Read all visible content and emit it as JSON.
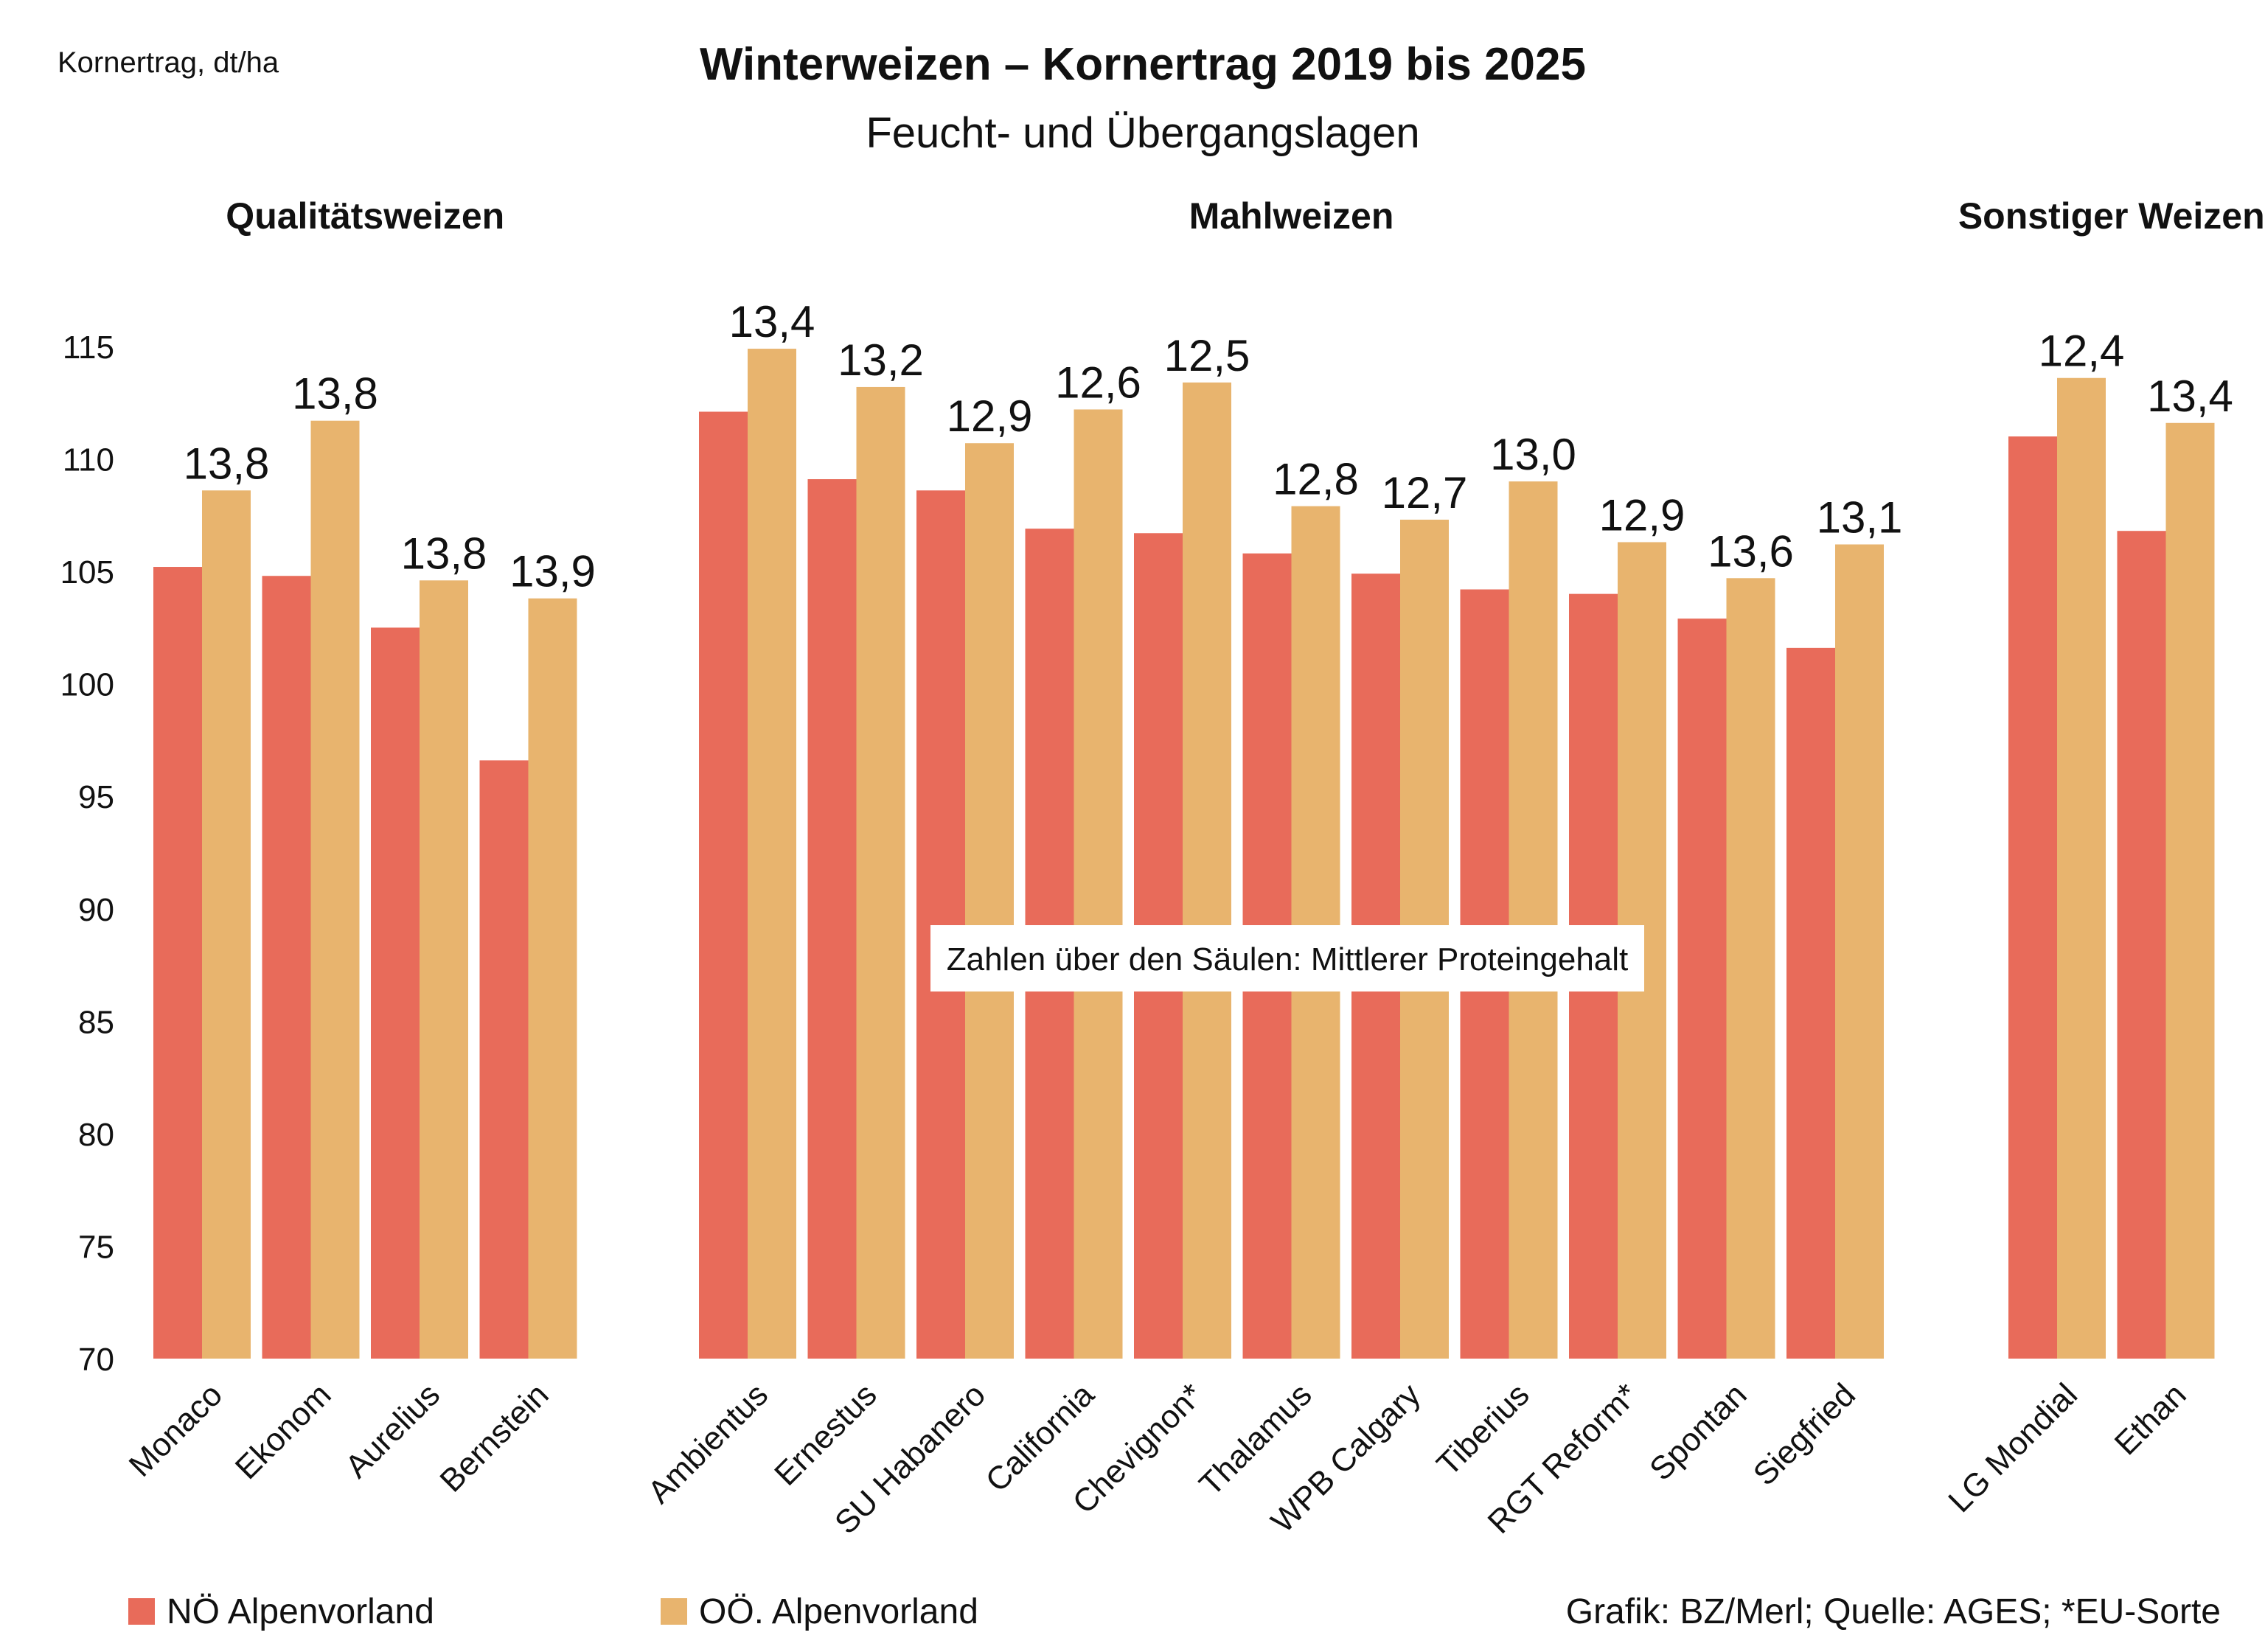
{
  "chart_data": {
    "type": "bar",
    "title": "Winterweizen – Kornertrag 2019 bis 2025",
    "subtitle": "Feucht- und Übergangslagen",
    "ylabel": "Kornertrag, dt/ha",
    "ylim": [
      70,
      117
    ],
    "yticks": [
      70,
      75,
      80,
      85,
      90,
      95,
      100,
      105,
      110,
      115
    ],
    "grid": false,
    "legend_position": "bottom-left",
    "note": "Zahlen über den Säulen: Mittlerer Proteingehalt",
    "source": "Grafik: BZ/Merl; Quelle: AGES; *EU-Sorte",
    "colors": {
      "NÖ Alpenvorland": "#e86b5a",
      "OÖ. Alpenvorland": "#e8b46e"
    },
    "groups": [
      {
        "name": "Qualitätsweizen",
        "categories": [
          "Monaco",
          "Ekonom",
          "Aurelius",
          "Bernstein"
        ]
      },
      {
        "name": "Mahlweizen",
        "categories": [
          "Ambientus",
          "Ernestus",
          "SU Habanero",
          "California",
          "Chevignon*",
          "Thalamus",
          "WPB Calgary",
          "Tiberius",
          "RGT Reform*",
          "Spontan",
          "Siegfried"
        ]
      },
      {
        "name": "Sonstiger Weizen",
        "categories": [
          "LG Mondial",
          "Ethan"
        ]
      }
    ],
    "series": [
      {
        "name": "NÖ Alpenvorland",
        "values": [
          105.2,
          104.8,
          102.5,
          96.6,
          112.1,
          109.1,
          108.6,
          106.9,
          106.7,
          105.8,
          104.9,
          104.2,
          104.0,
          102.9,
          101.6,
          111.0,
          106.8
        ]
      },
      {
        "name": "OÖ. Alpenvorland",
        "values": [
          108.6,
          111.7,
          104.6,
          103.8,
          114.9,
          113.2,
          110.7,
          112.2,
          113.4,
          107.9,
          107.3,
          109.0,
          106.3,
          104.7,
          106.2,
          113.6,
          111.6
        ]
      }
    ],
    "data_labels": [
      "13,8",
      "13,8",
      "13,8",
      "13,9",
      "13,4",
      "13,2",
      "12,9",
      "12,6",
      "12,5",
      "12,8",
      "12,7",
      "13,0",
      "12,9",
      "13,6",
      "13,1",
      "12,4",
      "13,4"
    ]
  }
}
